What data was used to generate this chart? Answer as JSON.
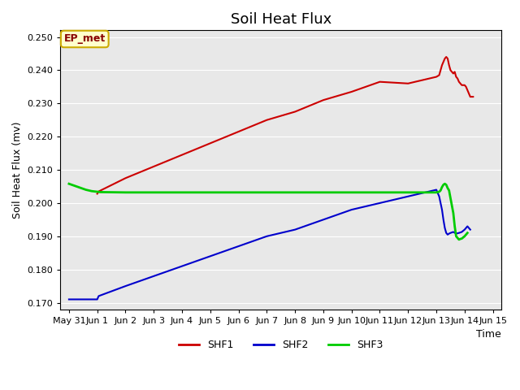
{
  "title": "Soil Heat Flux",
  "xlabel": "Time",
  "ylabel": "Soil Heat Flux (mv)",
  "ylim": [
    0.168,
    0.252
  ],
  "xlim": [
    -0.3,
    15.3
  ],
  "bg_color": "#e8e8e8",
  "annotation_text": "EP_met",
  "annotation_fg": "#880000",
  "annotation_bg": "#ffffcc",
  "annotation_border": "#ccaa00",
  "shf1_color": "#cc0000",
  "shf2_color": "#0000cc",
  "shf3_color": "#00cc00",
  "shf1_x": [
    1.0,
    1.05,
    2.0,
    3.0,
    4.0,
    5.0,
    6.0,
    7.0,
    8.0,
    9.0,
    10.0,
    11.0,
    12.0,
    13.0,
    13.1,
    13.2,
    13.3,
    13.35,
    13.4,
    13.45,
    13.5,
    13.6,
    13.65,
    13.7,
    13.75,
    13.8,
    13.9,
    14.0,
    14.05,
    14.1,
    14.15,
    14.2,
    14.3
  ],
  "shf1_y": [
    0.2028,
    0.2035,
    0.2075,
    0.211,
    0.2145,
    0.218,
    0.2215,
    0.225,
    0.2275,
    0.231,
    0.2335,
    0.2365,
    0.236,
    0.238,
    0.2385,
    0.2415,
    0.2435,
    0.244,
    0.2435,
    0.2415,
    0.24,
    0.239,
    0.2395,
    0.238,
    0.2375,
    0.2365,
    0.2355,
    0.2355,
    0.235,
    0.234,
    0.233,
    0.232,
    0.232
  ],
  "shf2_x": [
    0.0,
    0.5,
    1.0,
    1.05,
    2.0,
    3.0,
    4.0,
    5.0,
    6.0,
    7.0,
    8.0,
    9.0,
    10.0,
    11.0,
    12.0,
    13.0,
    13.1,
    13.2,
    13.25,
    13.3,
    13.35,
    13.4,
    13.45,
    13.5,
    13.6,
    13.7,
    13.8,
    13.9,
    14.0,
    14.1,
    14.2
  ],
  "shf2_y": [
    0.171,
    0.171,
    0.171,
    0.172,
    0.175,
    0.178,
    0.181,
    0.184,
    0.187,
    0.19,
    0.192,
    0.195,
    0.198,
    0.2,
    0.202,
    0.204,
    0.202,
    0.198,
    0.195,
    0.1925,
    0.191,
    0.1905,
    0.1908,
    0.191,
    0.1913,
    0.1908,
    0.191,
    0.1913,
    0.192,
    0.193,
    0.192
  ],
  "shf3_x": [
    0.0,
    0.2,
    0.4,
    0.6,
    0.8,
    1.0,
    1.1,
    2.0,
    3.0,
    4.0,
    5.0,
    6.0,
    7.0,
    8.0,
    9.0,
    10.0,
    11.0,
    12.0,
    13.0,
    13.05,
    13.1,
    13.15,
    13.2,
    13.25,
    13.3,
    13.35,
    13.4,
    13.45,
    13.5,
    13.6,
    13.65,
    13.7,
    13.75,
    13.8,
    13.85,
    13.9,
    14.0,
    14.05,
    14.1
  ],
  "shf3_y": [
    0.2058,
    0.2052,
    0.2046,
    0.204,
    0.2036,
    0.2034,
    0.2033,
    0.2032,
    0.2032,
    0.2032,
    0.2032,
    0.2032,
    0.2032,
    0.2032,
    0.2032,
    0.2032,
    0.2032,
    0.2032,
    0.2032,
    0.2033,
    0.2034,
    0.2038,
    0.2048,
    0.2055,
    0.2058,
    0.2055,
    0.2045,
    0.2038,
    0.2015,
    0.197,
    0.193,
    0.19,
    0.1895,
    0.189,
    0.1892,
    0.1893,
    0.19,
    0.1905,
    0.191
  ],
  "yticks": [
    0.17,
    0.18,
    0.19,
    0.2,
    0.21,
    0.22,
    0.23,
    0.24,
    0.25
  ]
}
